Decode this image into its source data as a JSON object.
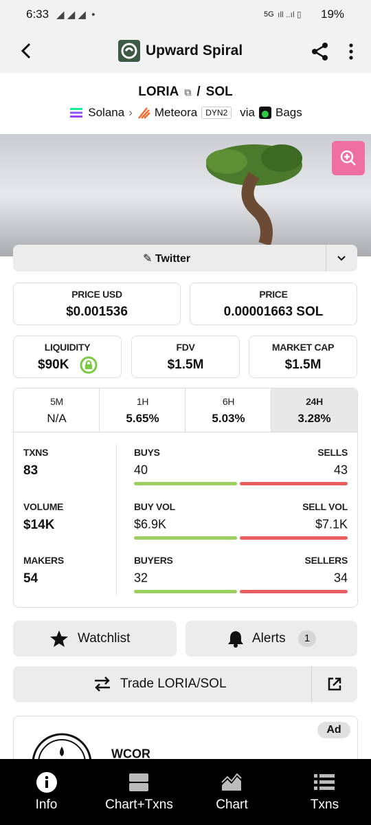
{
  "status_bar": {
    "time": "6:33",
    "network": "5G",
    "battery": "19%"
  },
  "header": {
    "title": "Upward Spiral"
  },
  "pair": {
    "base": "LORIA",
    "separator": "/",
    "quote": "SOL",
    "chain": "Solana",
    "dex": "Meteora",
    "pool_tag": "DYN2",
    "via": "via",
    "launchpad": "Bags"
  },
  "social": {
    "label": "Twitter"
  },
  "price_cards": [
    {
      "label": "PRICE USD",
      "value": "$0.001536"
    },
    {
      "label": "PRICE",
      "value": "0.00001663 SOL"
    }
  ],
  "market_cards": [
    {
      "label": "LIQUIDITY",
      "value": "$90K"
    },
    {
      "label": "FDV",
      "value": "$1.5M"
    },
    {
      "label": "MARKET CAP",
      "value": "$1.5M"
    }
  ],
  "timeframes": [
    {
      "label": "5M",
      "value": "N/A"
    },
    {
      "label": "1H",
      "value": "5.65%"
    },
    {
      "label": "6H",
      "value": "5.03%"
    },
    {
      "label": "24H",
      "value": "3.28%"
    }
  ],
  "metrics": [
    {
      "label": "TXNS",
      "value": "83",
      "left_label": "BUYS",
      "left_value": "40",
      "right_label": "SELLS",
      "right_value": "43"
    },
    {
      "label": "VOLUME",
      "value": "$14K",
      "left_label": "BUY VOL",
      "left_value": "$6.9K",
      "right_label": "SELL VOL",
      "right_value": "$7.1K"
    },
    {
      "label": "MAKERS",
      "value": "54",
      "left_label": "BUYERS",
      "left_value": "32",
      "right_label": "SELLERS",
      "right_value": "34"
    }
  ],
  "actions": {
    "watchlist": "Watchlist",
    "alerts": "Alerts",
    "alerts_count": "1",
    "trade": "Trade LORIA/SOL"
  },
  "ad": {
    "badge": "Ad",
    "name": "WCOR"
  },
  "nav": [
    "Info",
    "Chart+Txns",
    "Chart",
    "Txns"
  ]
}
